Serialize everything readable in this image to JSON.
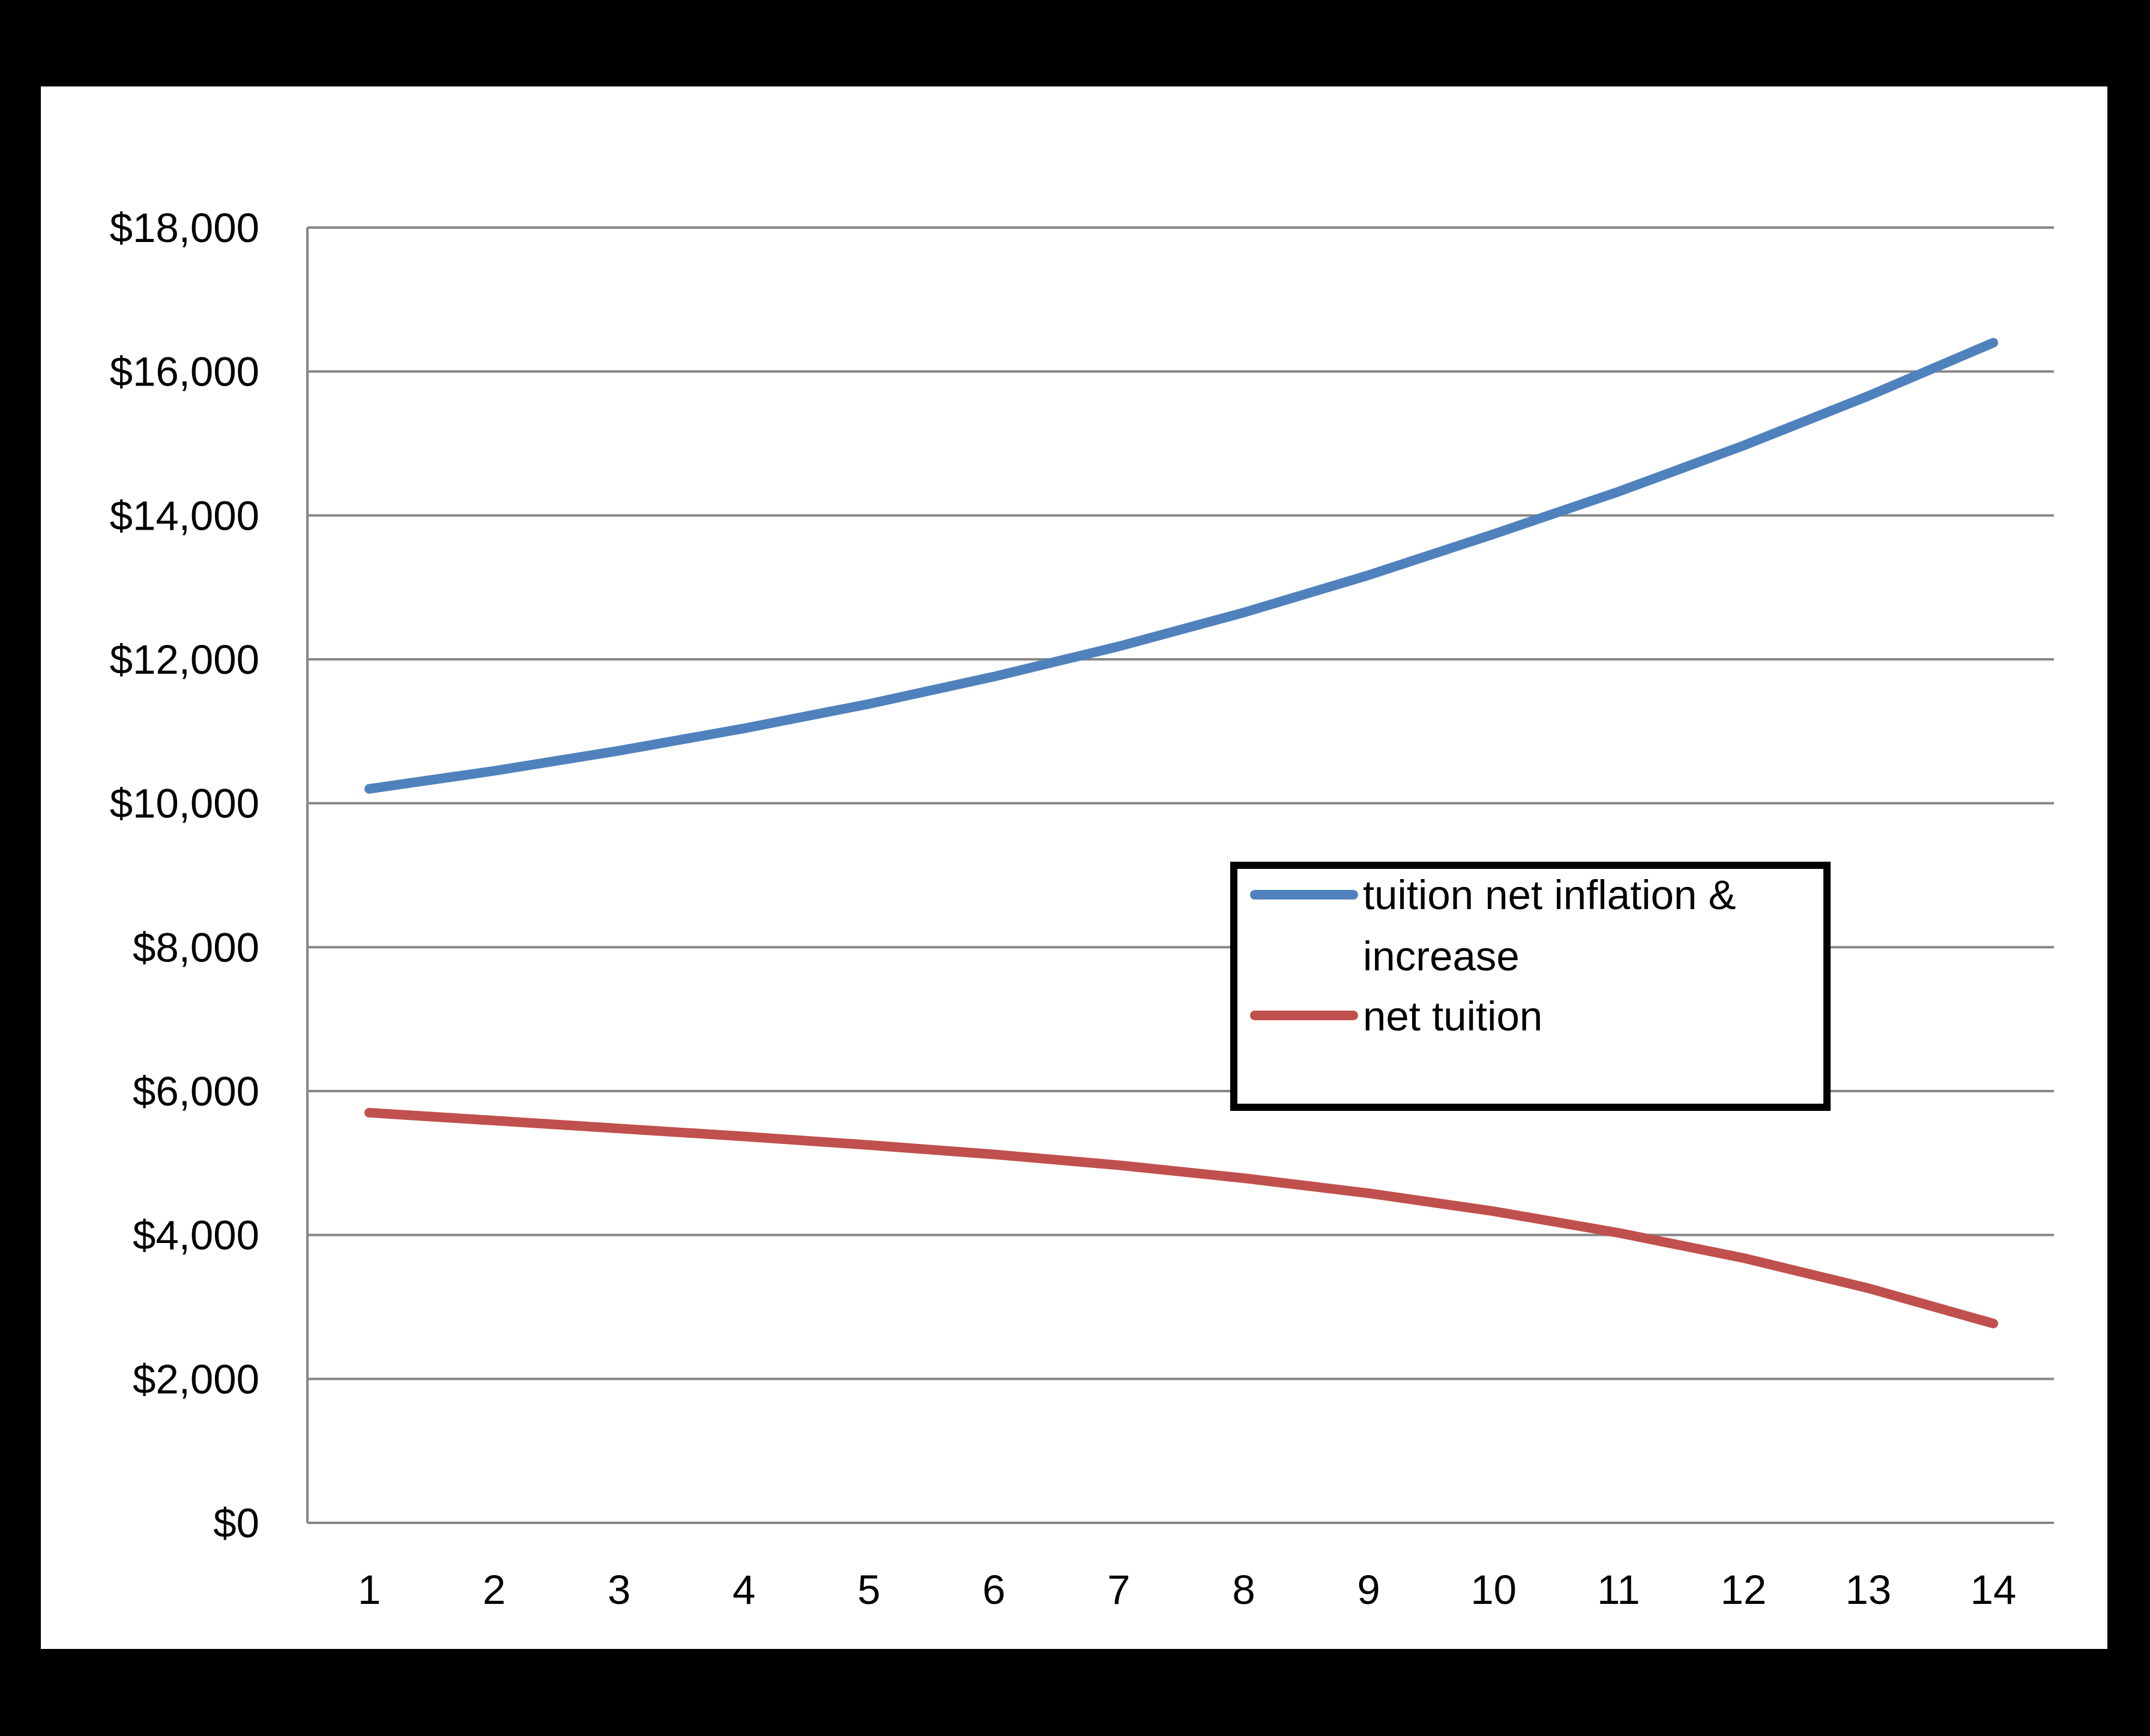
{
  "chart_data": {
    "type": "line",
    "title": "",
    "xlabel": "",
    "ylabel": "",
    "categories": [
      "1",
      "2",
      "3",
      "4",
      "5",
      "6",
      "7",
      "8",
      "9",
      "10",
      "11",
      "12",
      "13",
      "14"
    ],
    "ylim": [
      0,
      18000
    ],
    "y_ticks": [
      "$0",
      "$2,000",
      "$4,000",
      "$6,000",
      "$8,000",
      "$10,000",
      "$12,000",
      "$14,000",
      "$16,000",
      "$18,000"
    ],
    "y_tick_values": [
      0,
      2000,
      4000,
      6000,
      8000,
      10000,
      12000,
      14000,
      16000,
      18000
    ],
    "grid": "horizontal",
    "legend_position": "right-middle",
    "legend_lines": [
      [
        "tuition net inflation &",
        "increase"
      ],
      [
        "net tuition"
      ]
    ],
    "series": [
      {
        "name": "tuition net inflation & increase",
        "color": "#4f81bd",
        "values": [
          10200,
          10450,
          10730,
          11040,
          11380,
          11760,
          12180,
          12650,
          13170,
          13740,
          14330,
          14970,
          15660,
          16400
        ]
      },
      {
        "name": "net tuition",
        "color": "#c0504d",
        "values": [
          5700,
          5590,
          5480,
          5370,
          5250,
          5120,
          4970,
          4790,
          4580,
          4330,
          4030,
          3680,
          3260,
          2770
        ]
      }
    ]
  }
}
